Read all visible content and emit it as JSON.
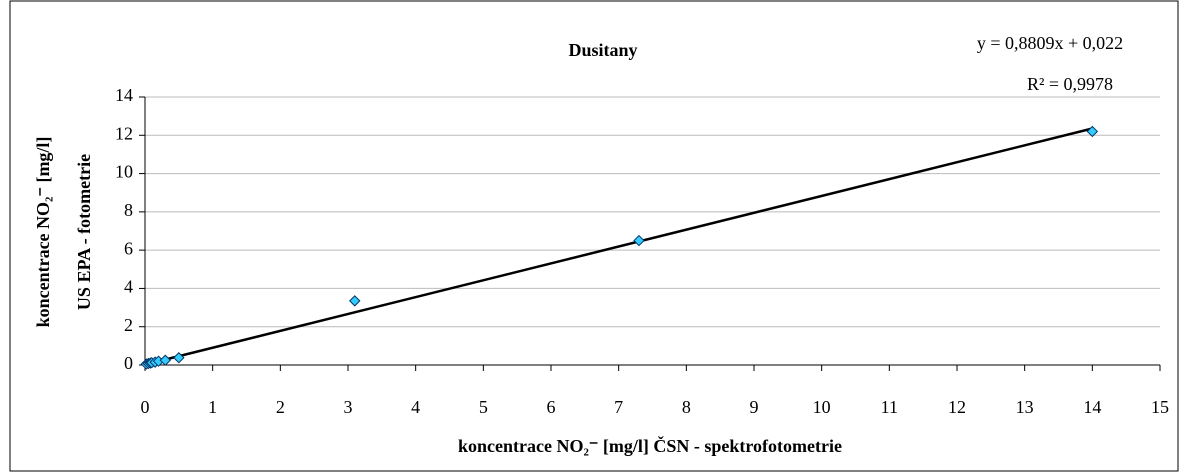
{
  "chart_data": {
    "type": "scatter",
    "title": "Dusitany",
    "x_label": "koncentrace NO₂⁻ [mg/l] ČSN - spektrofotometrie",
    "y_label": [
      "koncentrace NO₂⁻ [mg/l]",
      "US EPA - fotometrie"
    ],
    "x": [
      0.02,
      0.05,
      0.08,
      0.1,
      0.15,
      0.2,
      0.3,
      0.5,
      3.1,
      7.3,
      14.0
    ],
    "values": [
      0.05,
      0.08,
      0.1,
      0.12,
      0.15,
      0.2,
      0.25,
      0.38,
      3.35,
      6.5,
      12.2
    ],
    "color": "#33ccff",
    "trendline": {
      "slope": 0.8809,
      "intercept": 0.022,
      "label": "y = 0,8809x + 0,022",
      "r2": 0.9978,
      "r2_label": "R² = 0,9978",
      "color": "#000000"
    },
    "xlim": [
      0,
      15
    ],
    "xticks": [
      0,
      1,
      2,
      3,
      4,
      5,
      6,
      7,
      8,
      9,
      10,
      11,
      12,
      13,
      14,
      15
    ],
    "ylim": [
      0,
      14
    ],
    "yticks": [
      0,
      2,
      4,
      6,
      8,
      10,
      12,
      14
    ],
    "grid": true
  }
}
